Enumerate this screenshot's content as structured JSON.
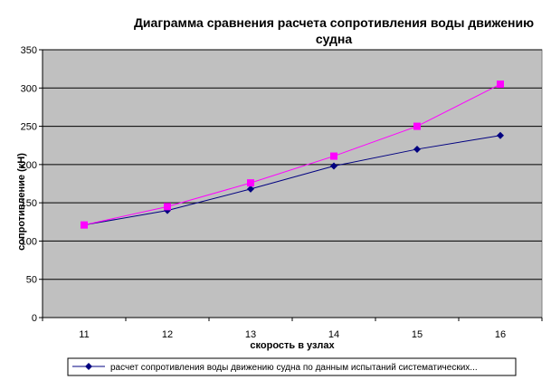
{
  "chart_data": {
    "type": "line",
    "title_line1": "Диаграмма сравнения расчета сопротивления воды движению",
    "title_line2": "судна",
    "xlabel": "скорость в узлах",
    "ylabel": "сопротивление (кН)",
    "x": [
      11,
      12,
      13,
      14,
      15,
      16
    ],
    "ylim": [
      0,
      350
    ],
    "yticks": [
      0,
      50,
      100,
      150,
      200,
      250,
      300,
      350
    ],
    "grid": true,
    "legend_position": "bottom",
    "plot_background": "#c0c0c0",
    "series": [
      {
        "name": "расчет сопротивления воды движению судна по данным испытаний систематических...",
        "values": [
          121,
          140,
          168,
          198,
          220,
          238
        ],
        "color": "#000080",
        "marker": "diamond"
      },
      {
        "name": "",
        "values": [
          121,
          145,
          176,
          211,
          250,
          305
        ],
        "color": "#ff00ff",
        "marker": "square"
      }
    ]
  }
}
